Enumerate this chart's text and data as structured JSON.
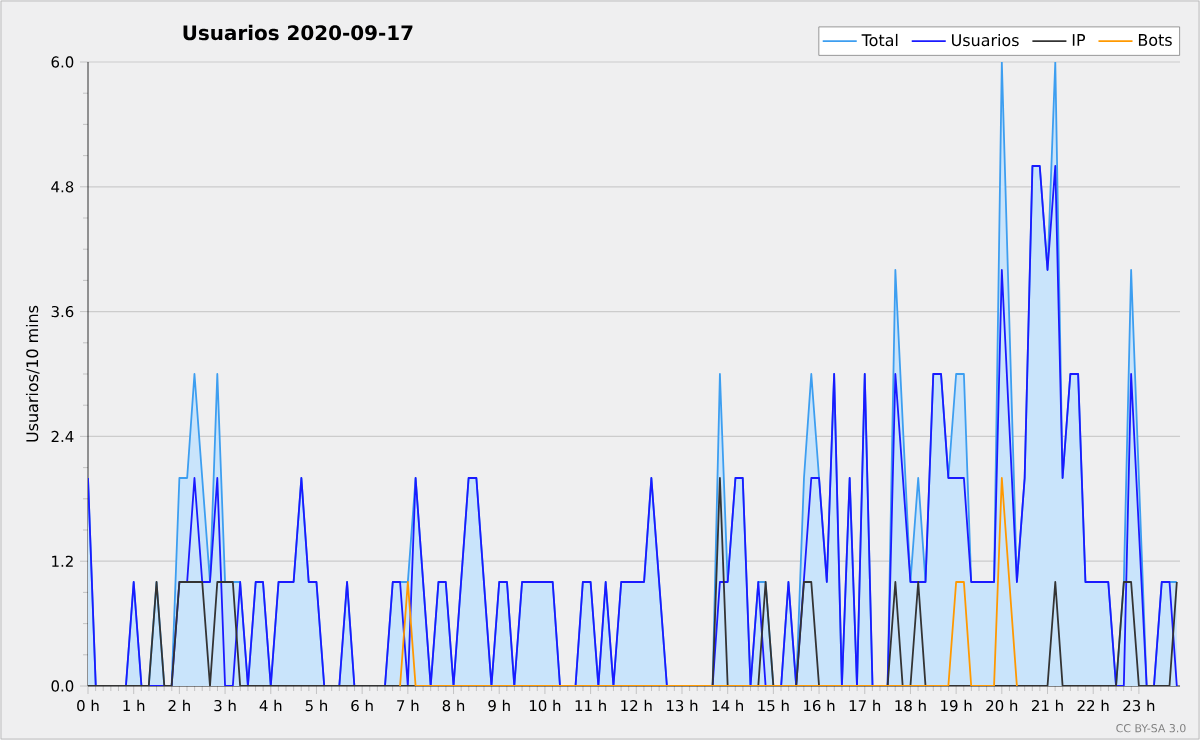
{
  "chart_data": {
    "type": "line",
    "title": "Usuarios  2020-09-17",
    "ylabel": "Usuarios/10 mins",
    "annotations": [
      "CC BY-SA 3.0"
    ],
    "xlim": [
      0,
      23.9
    ],
    "ylim": [
      0,
      6
    ],
    "xticks": [
      {
        "value": 0,
        "label": "0 h"
      },
      {
        "value": 1,
        "label": "1 h"
      },
      {
        "value": 2,
        "label": "2 h"
      },
      {
        "value": 3,
        "label": "3 h"
      },
      {
        "value": 4,
        "label": "4 h"
      },
      {
        "value": 5,
        "label": "5 h"
      },
      {
        "value": 6,
        "label": "6 h"
      },
      {
        "value": 7,
        "label": "7 h"
      },
      {
        "value": 8,
        "label": "8 h"
      },
      {
        "value": 9,
        "label": "9 h"
      },
      {
        "value": 10,
        "label": "10 h"
      },
      {
        "value": 11,
        "label": "11 h"
      },
      {
        "value": 12,
        "label": "12 h"
      },
      {
        "value": 13,
        "label": "13 h"
      },
      {
        "value": 14,
        "label": "14 h"
      },
      {
        "value": 15,
        "label": "15 h"
      },
      {
        "value": 16,
        "label": "16 h"
      },
      {
        "value": 17,
        "label": "17 h"
      },
      {
        "value": 18,
        "label": "18 h"
      },
      {
        "value": 19,
        "label": "19 h"
      },
      {
        "value": 20,
        "label": "20 h"
      },
      {
        "value": 21,
        "label": "21 h"
      },
      {
        "value": 22,
        "label": "22 h"
      },
      {
        "value": 23,
        "label": "23 h"
      }
    ],
    "yticks": [
      {
        "value": 0,
        "label": "0.0"
      },
      {
        "value": 1.2,
        "label": "1.2"
      },
      {
        "value": 2.4,
        "label": "2.4"
      },
      {
        "value": 3.6,
        "label": "3.6"
      },
      {
        "value": 4.8,
        "label": "4.8"
      },
      {
        "value": 6,
        "label": "6.0"
      }
    ],
    "grid": "y",
    "legend": "top right",
    "series": [
      {
        "name": "Total",
        "type": "area",
        "color": "#3d9ef0",
        "x": [
          0,
          0.17,
          0.83,
          1,
          1.17,
          1.33,
          1.5,
          1.67,
          1.83,
          2,
          2.17,
          2.33,
          2.5,
          2.67,
          2.83,
          3,
          3.17,
          3.33,
          3.5,
          3.67,
          3.83,
          4,
          4.17,
          4.5,
          4.67,
          4.83,
          5,
          5.17,
          5.5,
          5.67,
          5.83,
          6.5,
          6.67,
          6.83,
          7,
          7.17,
          7.5,
          7.67,
          7.83,
          8,
          8.33,
          8.5,
          8.83,
          9,
          9.17,
          9.33,
          9.5,
          10.17,
          10.33,
          10.67,
          10.83,
          11,
          11.17,
          11.33,
          11.5,
          11.67,
          12.17,
          12.33,
          12.67,
          13.67,
          13.83,
          14,
          14.17,
          14.33,
          14.5,
          14.67,
          14.83,
          15,
          15.17,
          15.33,
          15.5,
          15.67,
          15.83,
          16,
          16.17,
          16.33,
          16.5,
          16.67,
          16.83,
          17,
          17.17,
          17.5,
          17.67,
          18,
          18.17,
          18.33,
          18.5,
          18.67,
          18.83,
          19,
          19.17,
          19.33,
          19.83,
          20,
          20.33,
          20.5,
          20.67,
          20.83,
          21,
          21.17,
          21.33,
          21.5,
          21.67,
          21.83,
          22.33,
          22.5,
          22.67,
          22.83,
          23.17,
          23.33,
          23.5,
          23.67,
          23.83
        ],
        "values": [
          2,
          0,
          0,
          1,
          0,
          0,
          1,
          0,
          0,
          2,
          2,
          3,
          2,
          1,
          3,
          1,
          1,
          1,
          0,
          1,
          1,
          0,
          1,
          1,
          2,
          1,
          1,
          0,
          0,
          1,
          0,
          0,
          1,
          1,
          1,
          2,
          0,
          1,
          1,
          0,
          2,
          2,
          0,
          1,
          1,
          0,
          1,
          1,
          0,
          0,
          1,
          1,
          0,
          1,
          0,
          1,
          1,
          2,
          0,
          0,
          3,
          1,
          2,
          2,
          0,
          1,
          1,
          0,
          0,
          1,
          0,
          2,
          3,
          2,
          1,
          3,
          0,
          2,
          0,
          3,
          0,
          0,
          4,
          1,
          2,
          1,
          3,
          3,
          2,
          3,
          3,
          1,
          1,
          6,
          1,
          2,
          5,
          5,
          4,
          6,
          2,
          3,
          3,
          1,
          1,
          0,
          1,
          4,
          0,
          0,
          1,
          1,
          1
        ]
      },
      {
        "name": "Usuarios",
        "color": "#1a1aff",
        "x": [
          0,
          0.17,
          0.83,
          1,
          1.17,
          1.83,
          2,
          2.17,
          2.33,
          2.5,
          2.67,
          2.83,
          3,
          3.17,
          3.33,
          3.5,
          3.67,
          3.83,
          4,
          4.17,
          4.5,
          4.67,
          4.83,
          5,
          5.17,
          5.5,
          5.67,
          5.83,
          6.5,
          6.67,
          6.83,
          7,
          7.17,
          7.5,
          7.67,
          7.83,
          8,
          8.33,
          8.5,
          8.83,
          9,
          9.17,
          9.33,
          9.5,
          10.17,
          10.33,
          10.67,
          10.83,
          11,
          11.17,
          11.33,
          11.5,
          11.67,
          12.17,
          12.33,
          12.67,
          13.67,
          13.83,
          14,
          14.17,
          14.33,
          14.5,
          14.67,
          14.83,
          15.17,
          15.33,
          15.5,
          15.83,
          16,
          16.17,
          16.33,
          16.5,
          16.67,
          16.83,
          17,
          17.17,
          17.5,
          17.67,
          18,
          18.33,
          18.5,
          18.67,
          18.83,
          19.17,
          19.33,
          19.83,
          20,
          20.33,
          20.5,
          20.67,
          20.83,
          21,
          21.17,
          21.33,
          21.5,
          21.67,
          21.83,
          22.33,
          22.5,
          22.67,
          22.83,
          23.17,
          23.33,
          23.5,
          23.67,
          23.83
        ],
        "values": [
          2,
          0,
          0,
          1,
          0,
          0,
          1,
          1,
          2,
          1,
          1,
          2,
          0,
          0,
          1,
          0,
          1,
          1,
          0,
          1,
          1,
          2,
          1,
          1,
          0,
          0,
          1,
          0,
          0,
          1,
          1,
          0,
          2,
          0,
          1,
          1,
          0,
          2,
          2,
          0,
          1,
          1,
          0,
          1,
          1,
          0,
          0,
          1,
          1,
          0,
          1,
          0,
          1,
          1,
          2,
          0,
          0,
          1,
          1,
          2,
          2,
          0,
          1,
          0,
          0,
          1,
          0,
          2,
          2,
          1,
          3,
          0,
          2,
          0,
          3,
          0,
          0,
          3,
          1,
          1,
          3,
          3,
          2,
          2,
          1,
          1,
          4,
          1,
          2,
          5,
          5,
          4,
          5,
          2,
          3,
          3,
          1,
          1,
          0,
          0,
          3,
          0,
          0,
          1,
          1,
          0
        ]
      },
      {
        "name": "IP",
        "color": "#333333",
        "x": [
          0,
          1.33,
          1.5,
          1.67,
          1.83,
          2,
          2.5,
          2.67,
          2.83,
          3,
          3.17,
          3.33,
          13.67,
          13.83,
          14,
          14.67,
          14.83,
          15,
          15.5,
          15.67,
          15.83,
          16,
          17.5,
          17.67,
          17.83,
          18,
          18.17,
          18.33,
          21,
          21.17,
          21.33,
          22.5,
          22.67,
          22.83,
          23,
          23.67,
          23.83
        ],
        "values": [
          0,
          0,
          1,
          0,
          0,
          1,
          1,
          0,
          1,
          1,
          1,
          0,
          0,
          2,
          0,
          0,
          1,
          0,
          0,
          1,
          1,
          0,
          0,
          1,
          0,
          0,
          1,
          0,
          0,
          1,
          0,
          0,
          1,
          1,
          0,
          0,
          1
        ]
      },
      {
        "name": "Bots",
        "color": "#ff9900",
        "x": [
          6.83,
          7,
          7.17,
          18.83,
          19,
          19.17,
          19.33,
          19.83,
          20,
          20.33
        ],
        "values": [
          0,
          1,
          0,
          0,
          1,
          1,
          0,
          0,
          2,
          0
        ]
      }
    ]
  }
}
